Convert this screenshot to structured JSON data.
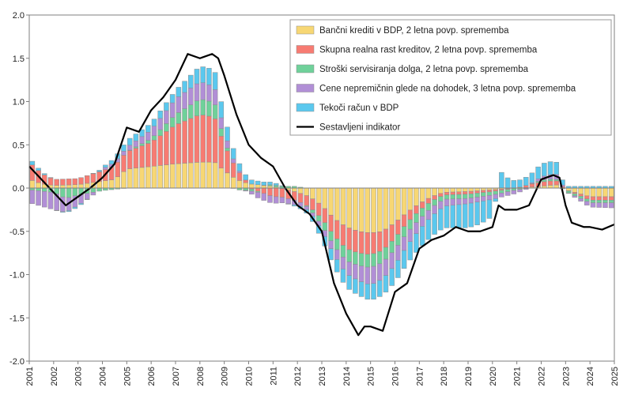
{
  "chart_data": {
    "type": "bar",
    "title": "",
    "xlabel": "",
    "ylabel": "",
    "ylim": [
      -2.0,
      2.0
    ],
    "y_ticks": [
      "2.0",
      "1.5",
      "1.0",
      "0.5",
      "0.0",
      "-0.5",
      "-1.0",
      "-1.5",
      "-2.0"
    ],
    "x_range": [
      2001,
      2025
    ],
    "x_ticks": [
      "2001",
      "2002",
      "2003",
      "2004",
      "2005",
      "2006",
      "2007",
      "2008",
      "2009",
      "2010",
      "2011",
      "2012",
      "2013",
      "2014",
      "2015",
      "2016",
      "2017",
      "2018",
      "2019",
      "2020",
      "2021",
      "2022",
      "2023",
      "2024",
      "2025"
    ],
    "grid": false,
    "stacked": true,
    "legend_position": "top-right",
    "colors": {
      "bancni": "#f7d774",
      "skupna": "#f77b72",
      "stroski": "#6fd19a",
      "cene": "#b18fd6",
      "tekoci": "#5bc8ee",
      "indikator": "#000000",
      "bar_edge": "#8f8f8f"
    },
    "series": [
      {
        "name": "Bančni krediti v BDP, 2 letna povp. sprememba",
        "key": "bancni",
        "kind": "bar",
        "anchors": [
          [
            2001.0,
            0.1
          ],
          [
            2001.5,
            0.05
          ],
          [
            2002.0,
            0.03
          ],
          [
            2003.0,
            0.04
          ],
          [
            2004.0,
            0.08
          ],
          [
            2004.5,
            0.1
          ],
          [
            2005.0,
            0.22
          ],
          [
            2006.0,
            0.25
          ],
          [
            2007.0,
            0.28
          ],
          [
            2008.0,
            0.3
          ],
          [
            2008.6,
            0.3
          ],
          [
            2009.0,
            0.2
          ],
          [
            2009.5,
            0.1
          ],
          [
            2010.0,
            0.05
          ],
          [
            2011.0,
            0.02
          ],
          [
            2012.0,
            -0.05
          ],
          [
            2012.5,
            -0.1
          ],
          [
            2013.0,
            -0.2
          ],
          [
            2013.5,
            -0.35
          ],
          [
            2014.0,
            -0.45
          ],
          [
            2014.5,
            -0.5
          ],
          [
            2015.0,
            -0.52
          ],
          [
            2015.5,
            -0.5
          ],
          [
            2016.0,
            -0.4
          ],
          [
            2016.5,
            -0.28
          ],
          [
            2017.0,
            -0.18
          ],
          [
            2017.5,
            -0.1
          ],
          [
            2018.0,
            -0.05
          ],
          [
            2019.0,
            -0.04
          ],
          [
            2020.0,
            -0.02
          ],
          [
            2021.0,
            0.0
          ],
          [
            2022.0,
            0.02
          ],
          [
            2022.6,
            0.04
          ],
          [
            2023.0,
            -0.02
          ],
          [
            2024.0,
            -0.1
          ],
          [
            2025.0,
            -0.1
          ]
        ]
      },
      {
        "name": "Skupna realna rast kreditov, 2 letna povp. sprememba",
        "key": "skupna",
        "kind": "bar",
        "anchors": [
          [
            2001.0,
            0.2
          ],
          [
            2001.5,
            0.12
          ],
          [
            2002.0,
            0.07
          ],
          [
            2003.0,
            0.07
          ],
          [
            2004.0,
            0.12
          ],
          [
            2004.5,
            0.16
          ],
          [
            2005.0,
            0.2
          ],
          [
            2006.0,
            0.28
          ],
          [
            2007.0,
            0.45
          ],
          [
            2008.0,
            0.55
          ],
          [
            2008.6,
            0.52
          ],
          [
            2009.0,
            0.3
          ],
          [
            2009.5,
            0.12
          ],
          [
            2010.0,
            0.0
          ],
          [
            2010.5,
            -0.05
          ],
          [
            2011.0,
            -0.1
          ],
          [
            2011.5,
            -0.1
          ],
          [
            2012.0,
            -0.1
          ],
          [
            2012.5,
            -0.12
          ],
          [
            2013.0,
            -0.15
          ],
          [
            2013.5,
            -0.2
          ],
          [
            2014.0,
            -0.25
          ],
          [
            2014.5,
            -0.25
          ],
          [
            2015.0,
            -0.25
          ],
          [
            2015.5,
            -0.22
          ],
          [
            2016.0,
            -0.18
          ],
          [
            2016.5,
            -0.12
          ],
          [
            2017.0,
            -0.08
          ],
          [
            2017.5,
            -0.05
          ],
          [
            2018.0,
            -0.03
          ],
          [
            2019.0,
            -0.03
          ],
          [
            2020.0,
            -0.02
          ],
          [
            2021.0,
            0.0
          ],
          [
            2021.5,
            0.03
          ],
          [
            2022.0,
            0.05
          ],
          [
            2022.6,
            0.05
          ],
          [
            2023.0,
            0.0
          ],
          [
            2024.0,
            -0.04
          ],
          [
            2025.0,
            -0.04
          ]
        ]
      },
      {
        "name": "Stroški servisiranja dolga, 2 letna povp. sprememba",
        "key": "stroski",
        "kind": "bar",
        "anchors": [
          [
            2001.0,
            -0.02
          ],
          [
            2002.0,
            -0.05
          ],
          [
            2002.5,
            -0.12
          ],
          [
            2003.0,
            -0.08
          ],
          [
            2004.0,
            -0.03
          ],
          [
            2005.0,
            0.0
          ],
          [
            2006.0,
            0.04
          ],
          [
            2007.0,
            0.12
          ],
          [
            2008.0,
            0.18
          ],
          [
            2008.6,
            0.17
          ],
          [
            2009.0,
            0.05
          ],
          [
            2009.5,
            -0.02
          ],
          [
            2010.0,
            -0.03
          ],
          [
            2011.0,
            0.02
          ],
          [
            2012.0,
            0.02
          ],
          [
            2012.5,
            -0.02
          ],
          [
            2013.0,
            -0.08
          ],
          [
            2013.5,
            -0.12
          ],
          [
            2014.0,
            -0.14
          ],
          [
            2015.0,
            -0.15
          ],
          [
            2016.0,
            -0.13
          ],
          [
            2017.0,
            -0.1
          ],
          [
            2018.0,
            -0.05
          ],
          [
            2019.0,
            -0.05
          ],
          [
            2020.0,
            -0.04
          ],
          [
            2021.0,
            -0.02
          ],
          [
            2022.0,
            0.02
          ],
          [
            2022.6,
            0.02
          ],
          [
            2023.0,
            -0.02
          ],
          [
            2024.0,
            -0.03
          ],
          [
            2025.0,
            -0.03
          ]
        ]
      },
      {
        "name": "Cene nepremičnin glede na dohodek, 3 letna povp. sprememba",
        "key": "cene",
        "kind": "bar",
        "anchors": [
          [
            2001.0,
            -0.15
          ],
          [
            2002.0,
            -0.2
          ],
          [
            2003.0,
            -0.12
          ],
          [
            2004.0,
            0.02
          ],
          [
            2005.0,
            0.05
          ],
          [
            2006.0,
            0.1
          ],
          [
            2007.0,
            0.18
          ],
          [
            2008.0,
            0.2
          ],
          [
            2008.6,
            0.18
          ],
          [
            2009.0,
            0.1
          ],
          [
            2009.5,
            0.03
          ],
          [
            2010.0,
            -0.02
          ],
          [
            2010.5,
            -0.08
          ],
          [
            2011.0,
            -0.08
          ],
          [
            2011.5,
            -0.06
          ],
          [
            2012.0,
            -0.05
          ],
          [
            2012.5,
            -0.03
          ],
          [
            2013.0,
            -0.06
          ],
          [
            2013.5,
            -0.1
          ],
          [
            2014.0,
            -0.15
          ],
          [
            2015.0,
            -0.2
          ],
          [
            2016.0,
            -0.18
          ],
          [
            2017.0,
            -0.12
          ],
          [
            2018.0,
            -0.08
          ],
          [
            2019.0,
            -0.06
          ],
          [
            2020.0,
            -0.05
          ],
          [
            2021.0,
            -0.04
          ],
          [
            2022.0,
            0.04
          ],
          [
            2022.6,
            0.06
          ],
          [
            2023.0,
            0.0
          ],
          [
            2024.0,
            -0.05
          ],
          [
            2025.0,
            -0.06
          ]
        ]
      },
      {
        "name": "Tekoči račun v BDP",
        "key": "tekoci",
        "kind": "bar",
        "anchors": [
          [
            2001.0,
            0.05
          ],
          [
            2001.5,
            0.02
          ],
          [
            2002.0,
            0.0
          ],
          [
            2003.0,
            -0.02
          ],
          [
            2004.0,
            0.02
          ],
          [
            2005.0,
            0.08
          ],
          [
            2006.0,
            0.08
          ],
          [
            2007.0,
            0.1
          ],
          [
            2008.0,
            0.18
          ],
          [
            2008.6,
            0.2
          ],
          [
            2009.0,
            0.18
          ],
          [
            2009.5,
            0.1
          ],
          [
            2010.0,
            0.05
          ],
          [
            2011.0,
            0.03
          ],
          [
            2011.5,
            0.0
          ],
          [
            2012.0,
            -0.02
          ],
          [
            2012.5,
            -0.05
          ],
          [
            2013.0,
            -0.1
          ],
          [
            2013.5,
            -0.14
          ],
          [
            2014.0,
            -0.16
          ],
          [
            2015.0,
            -0.18
          ],
          [
            2016.0,
            -0.2
          ],
          [
            2017.0,
            -0.22
          ],
          [
            2018.0,
            -0.25
          ],
          [
            2019.0,
            -0.28
          ],
          [
            2019.5,
            -0.26
          ],
          [
            2020.0,
            -0.2
          ],
          [
            2020.3,
            0.2
          ],
          [
            2020.7,
            0.1
          ],
          [
            2021.0,
            0.08
          ],
          [
            2021.5,
            0.1
          ],
          [
            2022.0,
            0.15
          ],
          [
            2022.6,
            0.15
          ],
          [
            2023.0,
            0.02
          ],
          [
            2024.0,
            0.02
          ],
          [
            2025.0,
            0.02
          ]
        ]
      },
      {
        "name": "Sestavljeni indikator",
        "key": "indikator",
        "kind": "line",
        "anchors": [
          [
            2001.0,
            0.25
          ],
          [
            2001.5,
            0.1
          ],
          [
            2002.0,
            -0.05
          ],
          [
            2002.5,
            -0.2
          ],
          [
            2003.0,
            -0.1
          ],
          [
            2003.5,
            0.0
          ],
          [
            2004.0,
            0.12
          ],
          [
            2004.5,
            0.28
          ],
          [
            2005.0,
            0.7
          ],
          [
            2005.5,
            0.65
          ],
          [
            2006.0,
            0.9
          ],
          [
            2006.5,
            1.05
          ],
          [
            2007.0,
            1.25
          ],
          [
            2007.5,
            1.55
          ],
          [
            2008.0,
            1.5
          ],
          [
            2008.5,
            1.55
          ],
          [
            2008.75,
            1.5
          ],
          [
            2009.0,
            1.3
          ],
          [
            2009.5,
            0.85
          ],
          [
            2010.0,
            0.5
          ],
          [
            2010.5,
            0.35
          ],
          [
            2011.0,
            0.25
          ],
          [
            2011.5,
            0.0
          ],
          [
            2012.0,
            -0.2
          ],
          [
            2012.5,
            -0.3
          ],
          [
            2013.0,
            -0.5
          ],
          [
            2013.5,
            -1.1
          ],
          [
            2014.0,
            -1.45
          ],
          [
            2014.5,
            -1.7
          ],
          [
            2014.75,
            -1.6
          ],
          [
            2015.0,
            -1.6
          ],
          [
            2015.5,
            -1.65
          ],
          [
            2016.0,
            -1.2
          ],
          [
            2016.5,
            -1.1
          ],
          [
            2017.0,
            -0.7
          ],
          [
            2017.5,
            -0.6
          ],
          [
            2018.0,
            -0.55
          ],
          [
            2018.5,
            -0.45
          ],
          [
            2019.0,
            -0.5
          ],
          [
            2019.5,
            -0.5
          ],
          [
            2020.0,
            -0.45
          ],
          [
            2020.25,
            -0.2
          ],
          [
            2020.5,
            -0.25
          ],
          [
            2021.0,
            -0.25
          ],
          [
            2021.5,
            -0.2
          ],
          [
            2022.0,
            0.1
          ],
          [
            2022.5,
            0.15
          ],
          [
            2022.75,
            0.12
          ],
          [
            2023.0,
            -0.2
          ],
          [
            2023.25,
            -0.4
          ],
          [
            2023.75,
            -0.45
          ],
          [
            2024.0,
            -0.45
          ],
          [
            2024.5,
            -0.48
          ],
          [
            2025.0,
            -0.42
          ]
        ]
      }
    ]
  }
}
